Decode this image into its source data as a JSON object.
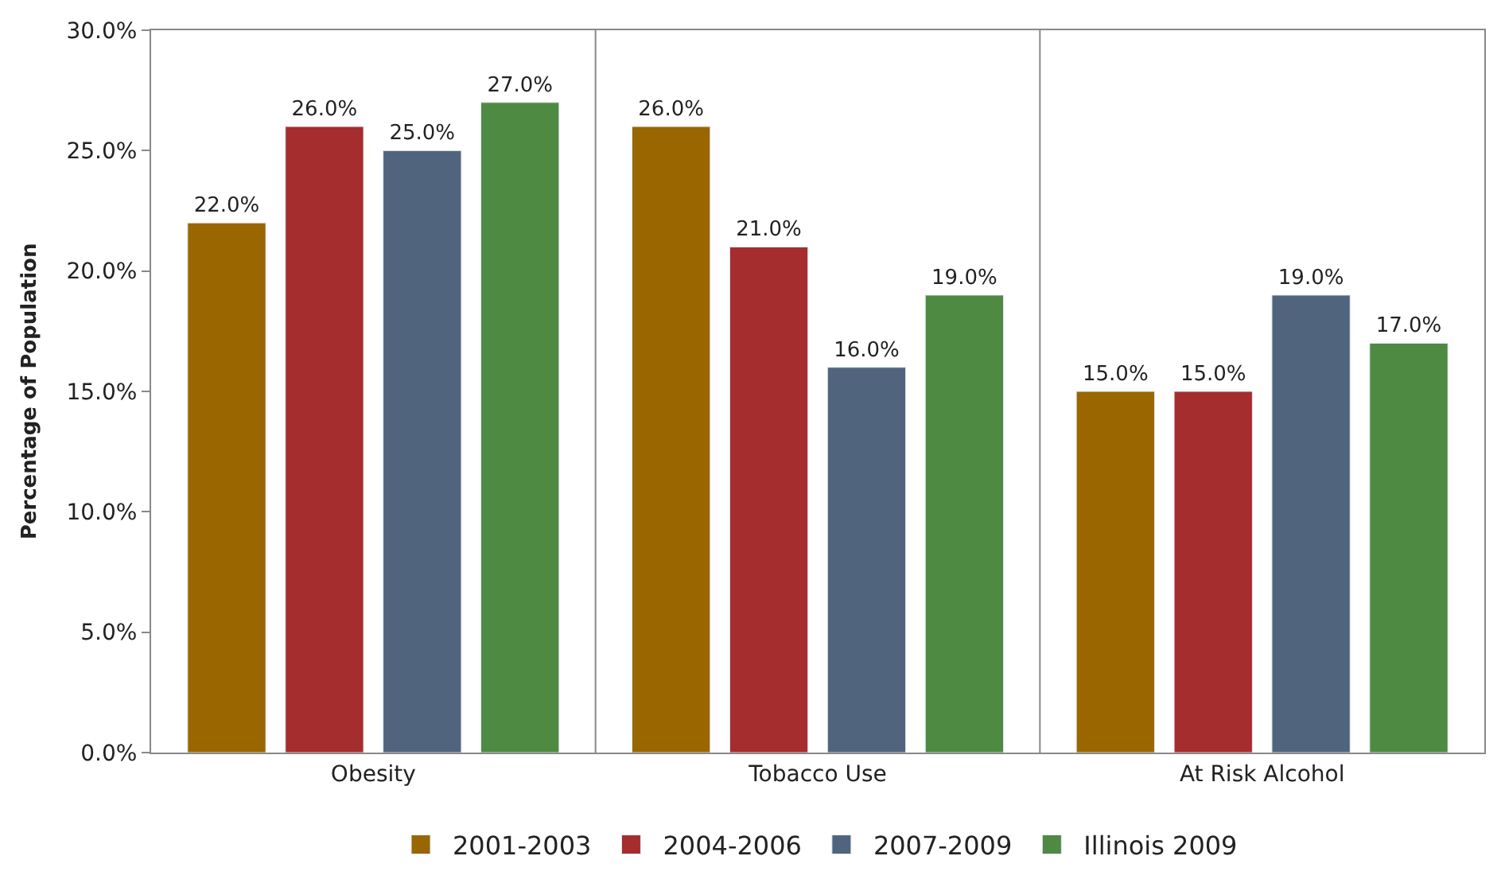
{
  "chart_data": {
    "type": "bar",
    "ylabel": "Percentage of Population",
    "categories": [
      "Obesity",
      "Tobacco Use",
      "At Risk Alcohol"
    ],
    "series": [
      {
        "name": "2001-2003",
        "color": "#996600",
        "values": [
          22,
          26,
          15
        ],
        "value_labels": [
          "22.0%",
          "26.0%",
          "15.0%"
        ]
      },
      {
        "name": "2004-2006",
        "color": "#a52d2d",
        "values": [
          26,
          21,
          15
        ],
        "value_labels": [
          "26.0%",
          "21.0%",
          "15.0%"
        ]
      },
      {
        "name": "2007-2009",
        "color": "#50647d",
        "values": [
          25,
          16,
          19
        ],
        "value_labels": [
          "25.0%",
          "16.0%",
          "19.0%"
        ]
      },
      {
        "name": "Illinois 2009",
        "color": "#4e8a42",
        "values": [
          27,
          19,
          17
        ],
        "value_labels": [
          "27.0%",
          "19.0%",
          "17.0%"
        ]
      }
    ],
    "ylim": [
      0,
      30
    ],
    "yticks": [
      {
        "value": 0,
        "label": "0.0%"
      },
      {
        "value": 5,
        "label": "5.0%"
      },
      {
        "value": 10,
        "label": "10.0%"
      },
      {
        "value": 15,
        "label": "15.0%"
      },
      {
        "value": 20,
        "label": "20.0%"
      },
      {
        "value": 25,
        "label": "25.0%"
      },
      {
        "value": 30,
        "label": "30.0%"
      }
    ],
    "grid": "x",
    "legend": "bottom"
  }
}
